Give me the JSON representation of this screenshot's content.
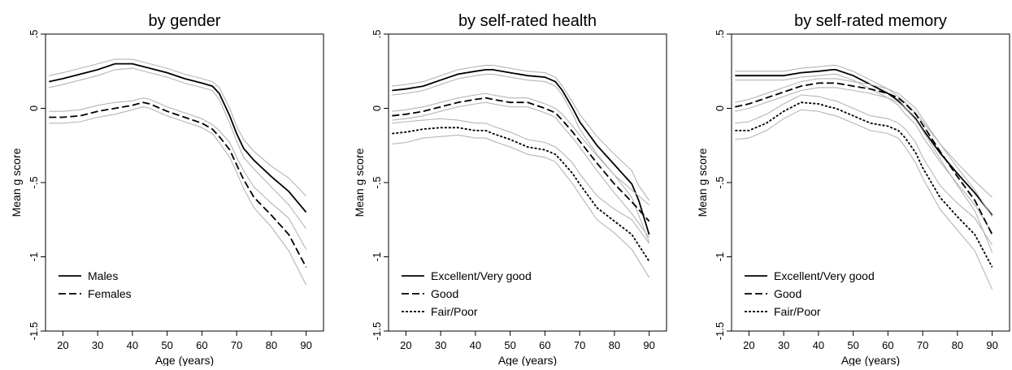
{
  "chart_data": [
    {
      "type": "line",
      "title": "by gender",
      "xlabel": "Age (years)",
      "ylabel": "Mean g score",
      "xlim": [
        15,
        95
      ],
      "ylim": [
        -1.5,
        0.5
      ],
      "xticks": [
        20,
        30,
        40,
        50,
        60,
        70,
        80,
        90
      ],
      "yticks": [
        ".5",
        "0",
        "-.5",
        "-1",
        "-1.5"
      ],
      "grid": false,
      "legend": "bottom-left",
      "series": [
        {
          "name": "Males",
          "style": "solid",
          "x": [
            16,
            20,
            25,
            30,
            35,
            40,
            45,
            50,
            55,
            60,
            63,
            65,
            68,
            70,
            72,
            75,
            80,
            85,
            90
          ],
          "y": [
            0.18,
            0.2,
            0.23,
            0.26,
            0.3,
            0.3,
            0.27,
            0.24,
            0.2,
            0.17,
            0.15,
            0.1,
            -0.05,
            -0.17,
            -0.27,
            -0.35,
            -0.46,
            -0.56,
            -0.7
          ],
          "ci_upper": [
            0.22,
            0.24,
            0.27,
            0.3,
            0.33,
            0.33,
            0.3,
            0.27,
            0.23,
            0.2,
            0.18,
            0.14,
            0.0,
            -0.12,
            -0.21,
            -0.29,
            -0.39,
            -0.47,
            -0.59
          ],
          "ci_lower": [
            0.14,
            0.16,
            0.19,
            0.22,
            0.26,
            0.27,
            0.24,
            0.21,
            0.17,
            0.14,
            0.12,
            0.06,
            -0.1,
            -0.22,
            -0.33,
            -0.41,
            -0.53,
            -0.65,
            -0.81
          ]
        },
        {
          "name": "Females",
          "style": "dashed",
          "x": [
            16,
            20,
            25,
            30,
            35,
            40,
            43,
            45,
            50,
            55,
            60,
            63,
            65,
            68,
            70,
            72,
            75,
            80,
            85,
            90
          ],
          "y": [
            -0.06,
            -0.06,
            -0.05,
            -0.02,
            0.0,
            0.02,
            0.04,
            0.03,
            -0.02,
            -0.06,
            -0.1,
            -0.14,
            -0.19,
            -0.28,
            -0.38,
            -0.48,
            -0.6,
            -0.72,
            -0.85,
            -1.07
          ],
          "ci_upper": [
            -0.02,
            -0.02,
            -0.01,
            0.02,
            0.04,
            0.05,
            0.07,
            0.06,
            0.01,
            -0.03,
            -0.07,
            -0.11,
            -0.15,
            -0.23,
            -0.33,
            -0.42,
            -0.53,
            -0.64,
            -0.74,
            -0.95
          ],
          "ci_lower": [
            -0.1,
            -0.1,
            -0.09,
            -0.06,
            -0.04,
            -0.01,
            0.01,
            0.0,
            -0.05,
            -0.09,
            -0.13,
            -0.17,
            -0.23,
            -0.33,
            -0.43,
            -0.54,
            -0.67,
            -0.8,
            -0.96,
            -1.19
          ]
        }
      ]
    },
    {
      "type": "line",
      "title": "by self-rated health",
      "xlabel": "Age (years)",
      "ylabel": "Mean g score",
      "xlim": [
        15,
        95
      ],
      "ylim": [
        -1.5,
        0.5
      ],
      "xticks": [
        20,
        30,
        40,
        50,
        60,
        70,
        80,
        90
      ],
      "yticks": [
        ".5",
        "0",
        "-.5",
        "-1",
        "-1.5"
      ],
      "grid": false,
      "legend": "bottom-left",
      "series": [
        {
          "name": "Excellent/Very good",
          "style": "solid",
          "x": [
            16,
            20,
            25,
            30,
            35,
            40,
            43,
            45,
            50,
            55,
            60,
            63,
            65,
            68,
            70,
            75,
            80,
            85,
            87,
            90
          ],
          "y": [
            0.12,
            0.13,
            0.15,
            0.19,
            0.23,
            0.25,
            0.26,
            0.26,
            0.24,
            0.22,
            0.21,
            0.18,
            0.12,
            0.0,
            -0.09,
            -0.25,
            -0.38,
            -0.51,
            -0.62,
            -0.85
          ],
          "ci_upper": [
            0.15,
            0.16,
            0.18,
            0.22,
            0.26,
            0.28,
            0.29,
            0.29,
            0.27,
            0.25,
            0.24,
            0.21,
            0.15,
            0.04,
            -0.04,
            -0.19,
            -0.31,
            -0.42,
            -0.52,
            -0.62
          ],
          "ci_lower": [
            0.09,
            0.1,
            0.12,
            0.16,
            0.2,
            0.22,
            0.23,
            0.23,
            0.21,
            0.19,
            0.18,
            0.15,
            0.09,
            -0.04,
            -0.14,
            -0.31,
            -0.45,
            -0.6,
            -0.72,
            -0.9
          ]
        },
        {
          "name": "Good",
          "style": "dashed",
          "x": [
            16,
            20,
            25,
            30,
            35,
            40,
            43,
            45,
            50,
            55,
            60,
            63,
            65,
            68,
            70,
            75,
            80,
            85,
            90
          ],
          "y": [
            -0.05,
            -0.04,
            -0.02,
            0.01,
            0.04,
            0.06,
            0.07,
            0.06,
            0.04,
            0.04,
            0.0,
            -0.03,
            -0.08,
            -0.16,
            -0.22,
            -0.37,
            -0.51,
            -0.63,
            -0.76
          ],
          "ci_upper": [
            -0.02,
            -0.01,
            0.01,
            0.04,
            0.07,
            0.09,
            0.1,
            0.09,
            0.07,
            0.07,
            0.03,
            0.0,
            -0.04,
            -0.12,
            -0.18,
            -0.32,
            -0.45,
            -0.55,
            -0.65
          ],
          "ci_lower": [
            -0.08,
            -0.07,
            -0.05,
            -0.02,
            0.01,
            0.03,
            0.04,
            0.03,
            0.01,
            0.01,
            -0.03,
            -0.06,
            -0.12,
            -0.2,
            -0.26,
            -0.42,
            -0.57,
            -0.71,
            -0.87
          ]
        },
        {
          "name": "Fair/Poor",
          "style": "dotted",
          "x": [
            16,
            20,
            25,
            30,
            35,
            40,
            43,
            45,
            50,
            55,
            60,
            63,
            65,
            68,
            70,
            75,
            80,
            85,
            90
          ],
          "y": [
            -0.17,
            -0.16,
            -0.14,
            -0.13,
            -0.13,
            -0.15,
            -0.15,
            -0.17,
            -0.21,
            -0.26,
            -0.28,
            -0.31,
            -0.36,
            -0.44,
            -0.51,
            -0.67,
            -0.76,
            -0.85,
            -1.03
          ],
          "ci_upper": [
            -0.1,
            -0.09,
            -0.08,
            -0.07,
            -0.08,
            -0.1,
            -0.1,
            -0.12,
            -0.16,
            -0.21,
            -0.23,
            -0.26,
            -0.3,
            -0.37,
            -0.44,
            -0.59,
            -0.68,
            -0.75,
            -0.91
          ],
          "ci_lower": [
            -0.24,
            -0.23,
            -0.2,
            -0.19,
            -0.18,
            -0.2,
            -0.2,
            -0.22,
            -0.26,
            -0.31,
            -0.33,
            -0.36,
            -0.42,
            -0.51,
            -0.58,
            -0.75,
            -0.84,
            -0.95,
            -1.14
          ]
        }
      ]
    },
    {
      "type": "line",
      "title": "by self-rated memory",
      "xlabel": "Age (years)",
      "ylabel": "Mean g score",
      "xlim": [
        15,
        95
      ],
      "ylim": [
        -1.5,
        0.5
      ],
      "xticks": [
        20,
        30,
        40,
        50,
        60,
        70,
        80,
        90
      ],
      "yticks": [
        ".5",
        "0",
        "-.5",
        "-1",
        "-1.5"
      ],
      "grid": false,
      "legend": "bottom-left",
      "series": [
        {
          "name": "Excellent/Very good",
          "style": "solid",
          "x": [
            16,
            20,
            25,
            30,
            35,
            40,
            44,
            45,
            50,
            55,
            60,
            63,
            65,
            68,
            70,
            75,
            80,
            85,
            90
          ],
          "y": [
            0.22,
            0.22,
            0.22,
            0.22,
            0.24,
            0.25,
            0.26,
            0.26,
            0.22,
            0.16,
            0.1,
            0.05,
            0.0,
            -0.07,
            -0.14,
            -0.3,
            -0.44,
            -0.57,
            -0.72
          ],
          "ci_upper": [
            0.25,
            0.25,
            0.25,
            0.25,
            0.27,
            0.28,
            0.29,
            0.29,
            0.25,
            0.19,
            0.13,
            0.08,
            0.04,
            -0.03,
            -0.09,
            -0.24,
            -0.37,
            -0.49,
            -0.6
          ],
          "ci_lower": [
            0.19,
            0.19,
            0.19,
            0.19,
            0.21,
            0.22,
            0.23,
            0.23,
            0.19,
            0.13,
            0.07,
            0.02,
            -0.04,
            -0.11,
            -0.19,
            -0.36,
            -0.51,
            -0.65,
            -0.84
          ]
        },
        {
          "name": "Good",
          "style": "dashed",
          "x": [
            16,
            20,
            25,
            30,
            35,
            40,
            44,
            45,
            50,
            55,
            60,
            63,
            65,
            68,
            70,
            75,
            80,
            85,
            90
          ],
          "y": [
            0.01,
            0.03,
            0.07,
            0.11,
            0.15,
            0.17,
            0.17,
            0.17,
            0.15,
            0.13,
            0.1,
            0.07,
            0.03,
            -0.04,
            -0.11,
            -0.29,
            -0.46,
            -0.62,
            -0.85
          ],
          "ci_upper": [
            0.04,
            0.06,
            0.1,
            0.14,
            0.18,
            0.2,
            0.2,
            0.2,
            0.18,
            0.16,
            0.13,
            0.1,
            0.06,
            0.0,
            -0.07,
            -0.24,
            -0.4,
            -0.55,
            -0.73
          ],
          "ci_lower": [
            -0.02,
            0.0,
            0.04,
            0.08,
            0.12,
            0.14,
            0.14,
            0.14,
            0.12,
            0.1,
            0.07,
            0.04,
            0.0,
            -0.08,
            -0.15,
            -0.34,
            -0.52,
            -0.69,
            -0.97
          ]
        },
        {
          "name": "Fair/Poor",
          "style": "dotted",
          "x": [
            16,
            20,
            25,
            30,
            35,
            40,
            43,
            45,
            50,
            55,
            60,
            63,
            65,
            68,
            70,
            75,
            80,
            85,
            90
          ],
          "y": [
            -0.15,
            -0.15,
            -0.1,
            -0.02,
            0.04,
            0.03,
            0.01,
            0.0,
            -0.05,
            -0.1,
            -0.12,
            -0.15,
            -0.2,
            -0.3,
            -0.4,
            -0.6,
            -0.73,
            -0.85,
            -1.07
          ],
          "ci_upper": [
            -0.1,
            -0.09,
            -0.04,
            0.03,
            0.09,
            0.08,
            0.06,
            0.05,
            0.0,
            -0.05,
            -0.07,
            -0.1,
            -0.14,
            -0.23,
            -0.33,
            -0.52,
            -0.64,
            -0.74,
            -0.92
          ],
          "ci_lower": [
            -0.21,
            -0.2,
            -0.15,
            -0.07,
            -0.01,
            -0.02,
            -0.04,
            -0.05,
            -0.1,
            -0.15,
            -0.17,
            -0.2,
            -0.26,
            -0.37,
            -0.47,
            -0.68,
            -0.82,
            -0.96,
            -1.22
          ]
        }
      ]
    }
  ]
}
